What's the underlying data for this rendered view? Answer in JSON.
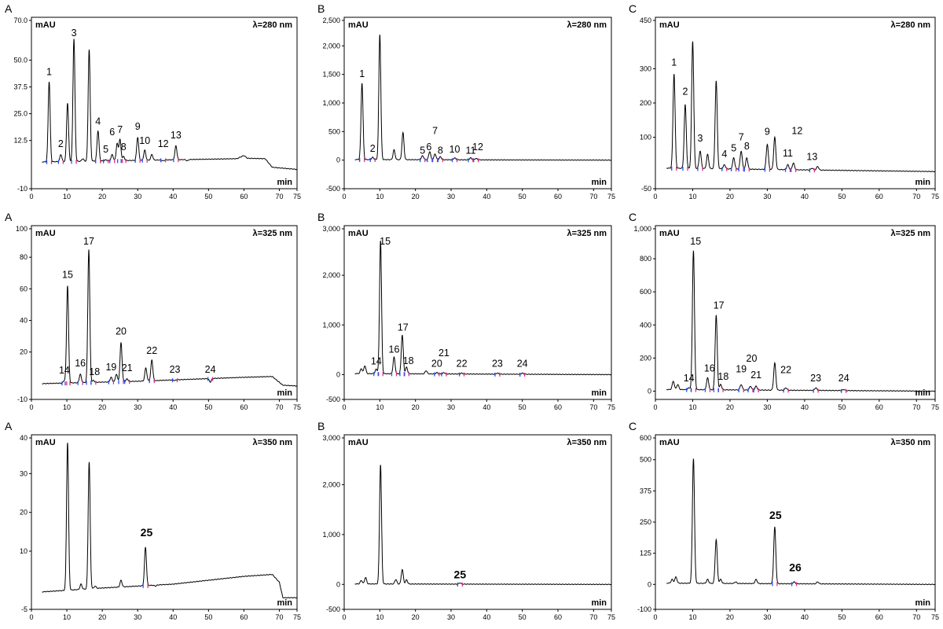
{
  "chart_data": [
    {
      "panel": "A",
      "wavelength": "λ=280 nm",
      "type": "line",
      "y_unit": "mAU",
      "x_unit": "min",
      "yticks": [
        "70.0",
        "50.0",
        "37.5",
        "25.0",
        "12.5",
        "-10"
      ],
      "ytick_vals": [
        70,
        50,
        37.5,
        25,
        12.5,
        -10
      ],
      "ylim": [
        -10,
        70
      ],
      "xlim": [
        0,
        75
      ],
      "xticks": [
        "0",
        "10",
        "20",
        "30",
        "40",
        "50",
        "60",
        "70",
        "75"
      ],
      "baseline": [
        [
          3,
          2.5
        ],
        [
          40,
          3.5
        ],
        [
          58,
          4
        ],
        [
          60,
          5.5
        ],
        [
          61,
          4.2
        ],
        [
          66,
          4
        ],
        [
          68,
          0
        ],
        [
          75,
          -1
        ]
      ],
      "peaks": [
        [
          5,
          40,
          "1"
        ],
        [
          8.3,
          6,
          "2"
        ],
        [
          10.2,
          30,
          ""
        ],
        [
          12,
          60,
          "3"
        ],
        [
          14.5,
          4,
          ""
        ],
        [
          16.3,
          55,
          ""
        ],
        [
          18.8,
          17,
          "4"
        ],
        [
          21,
          3.5,
          "5"
        ],
        [
          22.8,
          6,
          "6"
        ],
        [
          24.2,
          11,
          ""
        ],
        [
          25,
          13,
          "7"
        ],
        [
          26,
          5,
          "8"
        ],
        [
          30,
          14,
          "9"
        ],
        [
          32,
          8,
          "10"
        ],
        [
          34,
          6,
          ""
        ],
        [
          37.2,
          3,
          "12"
        ],
        [
          40.8,
          10,
          "13"
        ],
        [
          44,
          3,
          ""
        ]
      ],
      "labels": [
        [
          5,
          41.5,
          "1"
        ],
        [
          8.3,
          8,
          "2"
        ],
        [
          12,
          61.5,
          "3"
        ],
        [
          18.8,
          18.5,
          "4"
        ],
        [
          21,
          5.5,
          "5"
        ],
        [
          22.8,
          13.5,
          "6"
        ],
        [
          25,
          14.5,
          "7"
        ],
        [
          26,
          6.5,
          "8"
        ],
        [
          30,
          16,
          "9"
        ],
        [
          32,
          9.5,
          "10"
        ],
        [
          37.2,
          8,
          "12"
        ],
        [
          40.8,
          12,
          "13"
        ]
      ]
    },
    {
      "panel": "B",
      "wavelength": "λ=280 nm",
      "type": "line",
      "y_unit": "mAU",
      "x_unit": "min",
      "yticks": [
        "2,500",
        "2,000",
        "1,500",
        "1,000",
        "500",
        "0",
        "-500"
      ],
      "ytick_vals": [
        2500,
        2000,
        1500,
        1000,
        500,
        0,
        -500
      ],
      "ylim": [
        -500,
        2500
      ],
      "xlim": [
        0,
        75
      ],
      "xticks": [
        "0",
        "10",
        "20",
        "30",
        "40",
        "50",
        "60",
        "70",
        "75"
      ],
      "baseline": [
        [
          3,
          10
        ],
        [
          75,
          0
        ]
      ],
      "peaks": [
        [
          5,
          1350,
          "1"
        ],
        [
          8,
          50,
          "2"
        ],
        [
          10,
          2200,
          ""
        ],
        [
          14,
          180,
          ""
        ],
        [
          16.5,
          480,
          ""
        ],
        [
          22,
          80,
          "5"
        ],
        [
          24,
          150,
          "6"
        ],
        [
          25.5,
          110,
          "7"
        ],
        [
          27,
          60,
          "8"
        ],
        [
          31,
          40,
          "10"
        ],
        [
          35.5,
          40,
          "11"
        ],
        [
          37,
          30,
          "12"
        ]
      ],
      "labels": [
        [
          5,
          1400,
          "1"
        ],
        [
          8,
          90,
          "2"
        ],
        [
          22,
          60,
          "5"
        ],
        [
          23.8,
          120,
          "6"
        ],
        [
          25.5,
          400,
          "7"
        ],
        [
          27,
          60,
          "8"
        ],
        [
          31,
          80,
          "10"
        ],
        [
          35.5,
          60,
          "11"
        ],
        [
          37.5,
          120,
          "12"
        ]
      ]
    },
    {
      "panel": "C",
      "wavelength": "λ=280 nm",
      "type": "line",
      "y_unit": "mAU",
      "x_unit": "min",
      "yticks": [
        "450",
        "300",
        "200",
        "100",
        "-50"
      ],
      "ytick_vals": [
        450,
        300,
        200,
        100,
        -50
      ],
      "ylim": [
        -50,
        450
      ],
      "xlim": [
        0,
        75
      ],
      "xticks": [
        "0",
        "10",
        "20",
        "30",
        "40",
        "50",
        "60",
        "70",
        "75"
      ],
      "baseline": [
        [
          3,
          10
        ],
        [
          75,
          0
        ]
      ],
      "peaks": [
        [
          5,
          285,
          "1"
        ],
        [
          8,
          195,
          "2"
        ],
        [
          10,
          380,
          ""
        ],
        [
          12,
          60,
          "3"
        ],
        [
          14,
          50,
          ""
        ],
        [
          16.3,
          265,
          ""
        ],
        [
          18.5,
          20,
          "4"
        ],
        [
          21,
          40,
          "5"
        ],
        [
          23,
          60,
          "7"
        ],
        [
          24.5,
          40,
          "8"
        ],
        [
          30,
          80,
          "9"
        ],
        [
          32,
          100,
          ""
        ],
        [
          35.5,
          20,
          "11"
        ],
        [
          37,
          25,
          "12"
        ],
        [
          42,
          10,
          "13"
        ],
        [
          43.5,
          15,
          ""
        ]
      ],
      "labels": [
        [
          5,
          300,
          "1"
        ],
        [
          8,
          215,
          "2"
        ],
        [
          12,
          78,
          "3"
        ],
        [
          18.5,
          32,
          "4"
        ],
        [
          21,
          50,
          "5"
        ],
        [
          23,
          82,
          "7"
        ],
        [
          24.5,
          55,
          "8"
        ],
        [
          30,
          98,
          "9"
        ],
        [
          35.5,
          35,
          "11"
        ],
        [
          38,
          100,
          "12"
        ],
        [
          42,
          25,
          "13"
        ]
      ]
    },
    {
      "panel": "A",
      "wavelength": "λ=325 nm",
      "type": "line",
      "y_unit": "mAU",
      "x_unit": "min",
      "yticks": [
        "100",
        "80",
        "60",
        "40",
        "20",
        "-10"
      ],
      "ytick_vals": [
        100,
        80,
        60,
        40,
        20,
        -10
      ],
      "ylim": [
        -10,
        100
      ],
      "xlim": [
        0,
        75
      ],
      "xticks": [
        "0",
        "10",
        "20",
        "30",
        "40",
        "50",
        "60",
        "70",
        "75"
      ],
      "baseline": [
        [
          3,
          0
        ],
        [
          30,
          1.5
        ],
        [
          60,
          4
        ],
        [
          68,
          4.5
        ],
        [
          71,
          -1
        ],
        [
          75,
          -1.5
        ]
      ],
      "peaks": [
        [
          9.3,
          2,
          "14"
        ],
        [
          10.2,
          62,
          "15"
        ],
        [
          13.8,
          6,
          "16"
        ],
        [
          16.2,
          85,
          "17"
        ],
        [
          17.5,
          2,
          "18"
        ],
        [
          22.5,
          4,
          "19"
        ],
        [
          24,
          6,
          ""
        ],
        [
          25.3,
          26,
          "20"
        ],
        [
          27,
          3,
          "21"
        ],
        [
          32.3,
          10,
          ""
        ],
        [
          34,
          15,
          "22"
        ],
        [
          40.5,
          2,
          "23"
        ],
        [
          50.5,
          1,
          "24"
        ]
      ],
      "labels": [
        [
          9.3,
          4.5,
          "14"
        ],
        [
          10.2,
          65,
          "15"
        ],
        [
          13.8,
          9,
          "16"
        ],
        [
          16.2,
          88,
          "17"
        ],
        [
          17.8,
          3.5,
          "18"
        ],
        [
          22.5,
          6.5,
          "19"
        ],
        [
          25.3,
          29,
          "20"
        ],
        [
          27,
          6,
          "21"
        ],
        [
          34,
          17,
          "22"
        ],
        [
          40.5,
          5,
          "23"
        ],
        [
          50.5,
          5,
          "24"
        ]
      ]
    },
    {
      "panel": "B",
      "wavelength": "λ=325 nm",
      "type": "line",
      "y_unit": "mAU",
      "x_unit": "min",
      "yticks": [
        "3,000",
        "2,000",
        "1,000",
        "0",
        "-500"
      ],
      "ytick_vals": [
        3000,
        2000,
        1000,
        0,
        -500
      ],
      "ylim": [
        -500,
        3000
      ],
      "xlim": [
        0,
        75
      ],
      "xticks": [
        "0",
        "10",
        "20",
        "30",
        "40",
        "50",
        "60",
        "70",
        "75"
      ],
      "baseline": [
        [
          3,
          20
        ],
        [
          75,
          0
        ]
      ],
      "peaks": [
        [
          4.8,
          120,
          ""
        ],
        [
          5.8,
          180,
          ""
        ],
        [
          9,
          110,
          "14"
        ],
        [
          10.2,
          2700,
          "15"
        ],
        [
          14,
          350,
          "16"
        ],
        [
          16.3,
          800,
          "17"
        ],
        [
          17.5,
          150,
          "18"
        ],
        [
          23,
          80,
          ""
        ],
        [
          26,
          40,
          "20"
        ],
        [
          28,
          40,
          "21"
        ],
        [
          33,
          30,
          "22"
        ],
        [
          43,
          30,
          "23"
        ],
        [
          50,
          30,
          "24"
        ]
      ],
      "labels": [
        [
          9,
          140,
          "14"
        ],
        [
          11.5,
          2680,
          "15"
        ],
        [
          14,
          380,
          "16"
        ],
        [
          16.5,
          820,
          "17"
        ],
        [
          18,
          150,
          "18"
        ],
        [
          26,
          90,
          "20"
        ],
        [
          28,
          310,
          "21"
        ],
        [
          33,
          90,
          "22"
        ],
        [
          43,
          90,
          "23"
        ],
        [
          50,
          90,
          "24"
        ]
      ]
    },
    {
      "panel": "C",
      "wavelength": "λ=325 nm",
      "type": "line",
      "y_unit": "mAU",
      "x_unit": "min",
      "yticks": [
        "1,000",
        "800",
        "600",
        "400",
        "200",
        "0"
      ],
      "ytick_vals": [
        1000,
        800,
        600,
        400,
        200,
        0
      ],
      "ylim": [
        -50,
        1000
      ],
      "xlim": [
        0,
        75
      ],
      "xticks": [
        "0",
        "10",
        "20",
        "30",
        "40",
        "50",
        "60",
        "70",
        "75"
      ],
      "baseline": [
        [
          3,
          10
        ],
        [
          75,
          0
        ]
      ],
      "peaks": [
        [
          4.8,
          60,
          ""
        ],
        [
          6,
          40,
          ""
        ],
        [
          9,
          20,
          "14"
        ],
        [
          10.2,
          850,
          "15"
        ],
        [
          14,
          80,
          "16"
        ],
        [
          16.3,
          460,
          "17"
        ],
        [
          17.5,
          40,
          "18"
        ],
        [
          23,
          40,
          "19"
        ],
        [
          25.5,
          30,
          "20"
        ],
        [
          27,
          30,
          "21"
        ],
        [
          32,
          170,
          ""
        ],
        [
          35,
          20,
          "22"
        ],
        [
          43,
          20,
          "23"
        ],
        [
          50.5,
          10,
          "24"
        ]
      ],
      "labels": [
        [
          9,
          40,
          "14"
        ],
        [
          10.8,
          880,
          "15"
        ],
        [
          14.5,
          100,
          "16"
        ],
        [
          17,
          480,
          "17"
        ],
        [
          18.2,
          50,
          "18"
        ],
        [
          23,
          95,
          "19"
        ],
        [
          25.8,
          160,
          "20"
        ],
        [
          27,
          60,
          "21"
        ],
        [
          35,
          90,
          "22"
        ],
        [
          43,
          40,
          "23"
        ],
        [
          50.5,
          40,
          "24"
        ]
      ]
    },
    {
      "panel": "A",
      "wavelength": "λ=350 nm",
      "type": "line",
      "y_unit": "mAU",
      "x_unit": "min",
      "yticks": [
        "40",
        "30",
        "20",
        "10",
        "-5"
      ],
      "ytick_vals": [
        40,
        30,
        20,
        10,
        -5
      ],
      "ylim": [
        -5,
        40
      ],
      "xlim": [
        0,
        75
      ],
      "xticks": [
        "0",
        "10",
        "20",
        "30",
        "40",
        "50",
        "60",
        "70",
        "75"
      ],
      "baseline": [
        [
          3,
          -0.5
        ],
        [
          20,
          0.5
        ],
        [
          40,
          1.5
        ],
        [
          60,
          3.5
        ],
        [
          68,
          4
        ],
        [
          70,
          2
        ],
        [
          71,
          -2
        ],
        [
          75,
          -2
        ]
      ],
      "peaks": [
        [
          10.2,
          38,
          ""
        ],
        [
          14,
          1.5,
          ""
        ],
        [
          16.3,
          33,
          ""
        ],
        [
          18,
          1,
          ""
        ],
        [
          25.3,
          2.5,
          ""
        ],
        [
          32.2,
          11,
          "25"
        ],
        [
          35,
          1,
          ""
        ]
      ],
      "labels": [
        [
          32.5,
          13,
          "25"
        ]
      ]
    },
    {
      "panel": "B",
      "wavelength": "λ=350 nm",
      "type": "line",
      "y_unit": "mAU",
      "x_unit": "min",
      "yticks": [
        "3,000",
        "2,000",
        "1,000",
        "0",
        "-500"
      ],
      "ytick_vals": [
        3000,
        2000,
        1000,
        0,
        -500
      ],
      "ylim": [
        -500,
        3000
      ],
      "xlim": [
        0,
        75
      ],
      "xticks": [
        "0",
        "10",
        "20",
        "30",
        "40",
        "50",
        "60",
        "70",
        "75"
      ],
      "baseline": [
        [
          3,
          10
        ],
        [
          75,
          0
        ]
      ],
      "peaks": [
        [
          4.8,
          80,
          ""
        ],
        [
          6,
          140,
          ""
        ],
        [
          10.2,
          2400,
          ""
        ],
        [
          14.5,
          100,
          ""
        ],
        [
          16.3,
          300,
          ""
        ],
        [
          17.5,
          90,
          ""
        ],
        [
          32.5,
          30,
          "25"
        ]
      ],
      "labels": [
        [
          32.5,
          60,
          "25"
        ]
      ]
    },
    {
      "panel": "C",
      "wavelength": "λ=350 nm",
      "type": "line",
      "y_unit": "mAU",
      "x_unit": "min",
      "yticks": [
        "600",
        "500",
        "375",
        "250",
        "125",
        "0",
        "-100"
      ],
      "ytick_vals": [
        600,
        500,
        375,
        250,
        125,
        0,
        -100
      ],
      "ylim": [
        -100,
        600
      ],
      "xlim": [
        0,
        75
      ],
      "xticks": [
        "0",
        "10",
        "20",
        "30",
        "40",
        "50",
        "60",
        "70",
        "75"
      ],
      "baseline": [
        [
          3,
          5
        ],
        [
          75,
          0
        ]
      ],
      "peaks": [
        [
          4.5,
          20,
          ""
        ],
        [
          5.5,
          30,
          ""
        ],
        [
          10.2,
          505,
          ""
        ],
        [
          14,
          20,
          ""
        ],
        [
          16.3,
          180,
          ""
        ],
        [
          17.5,
          20,
          ""
        ],
        [
          21.5,
          10,
          ""
        ],
        [
          27,
          20,
          ""
        ],
        [
          32,
          230,
          "25"
        ],
        [
          37.2,
          10,
          "26"
        ],
        [
          43.5,
          10,
          ""
        ]
      ],
      "labels": [
        [
          32.2,
          250,
          "25"
        ],
        [
          37.5,
          40,
          "26"
        ]
      ]
    }
  ]
}
